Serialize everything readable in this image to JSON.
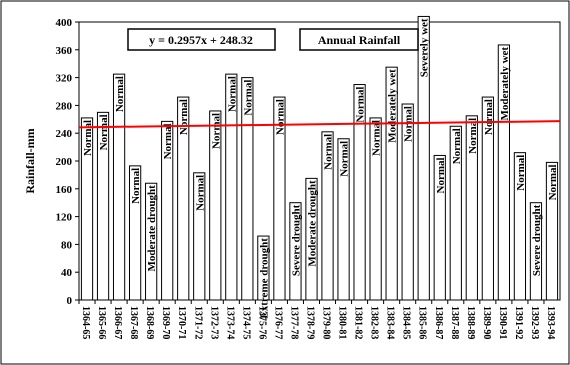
{
  "chart_data": {
    "type": "bar",
    "title": "",
    "xlabel": "",
    "ylabel": "Rainfall-mm",
    "ylim": [
      0,
      400
    ],
    "yticks": [
      0,
      40,
      80,
      120,
      160,
      200,
      240,
      280,
      320,
      360,
      400
    ],
    "grid": false,
    "legend_label": "Annual  Rainfall",
    "equation": "y = 0.2957x + 248.32",
    "categories": [
      "1364-65",
      "1365-66",
      "1366-67",
      "1367-68",
      "1368-69",
      "1369-70",
      "1370-71",
      "1371-72",
      "1372-73",
      "1373-74",
      "1374-75",
      "1375-76",
      "1376-77",
      "1377-78",
      "1378-79",
      "1379-80",
      "1380-81",
      "1381-82",
      "1382-83",
      "1383-84",
      "1384-85",
      "1385-86",
      "1386-87",
      "1387-88",
      "1388-89",
      "1389-90",
      "1390-91",
      "1391-92",
      "1392-93",
      "1393-94"
    ],
    "values": [
      262,
      270,
      325,
      193,
      168,
      257,
      292,
      183,
      272,
      325,
      320,
      92,
      292,
      140,
      175,
      242,
      232,
      310,
      262,
      335,
      282,
      408,
      208,
      250,
      265,
      292,
      367,
      212,
      140,
      198
    ],
    "bar_labels": [
      "Normal",
      "Normal",
      "Normal",
      "Normal",
      "Moderate drought",
      "Normal",
      "Normal",
      "Normal",
      "Normal",
      "Normal",
      "Normal",
      "Extreme drought",
      "Normal",
      "Severe drought",
      "Moderate drought",
      "Normal",
      "Normal",
      "Normal",
      "Normal",
      "Moderately wet",
      "Normal",
      "Severely wet",
      "Normal",
      "Normal",
      "Normal",
      "Normal",
      "Moderately wet",
      "Normal",
      "Severe drought",
      "Normal"
    ],
    "trendline": {
      "slope": 0.2957,
      "intercept": 248.32,
      "color": "#ff0000"
    },
    "bar_fill": "#ffffff",
    "bar_stroke": "#000000"
  }
}
